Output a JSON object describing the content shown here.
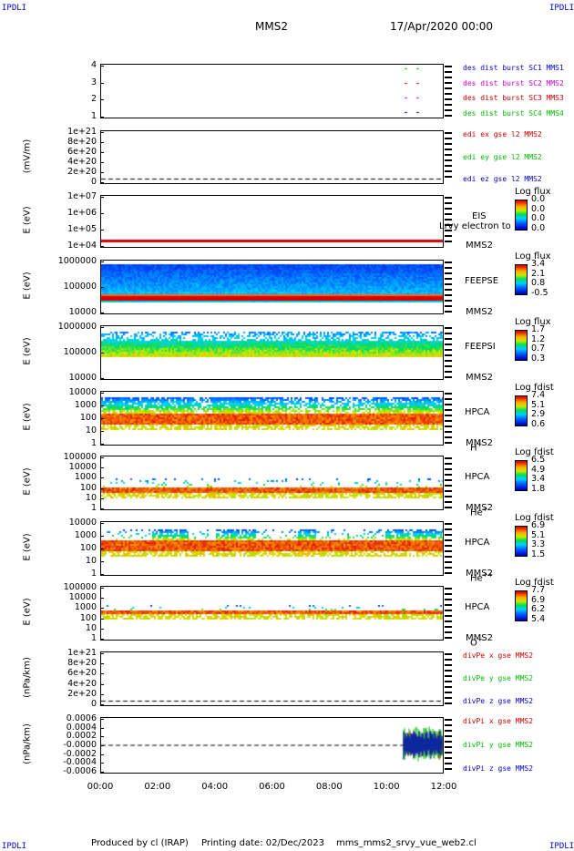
{
  "corners": {
    "tl": "IPDLI",
    "tr": "IPDLI",
    "bl": "IPDLI",
    "br": "IPDLI"
  },
  "header": {
    "spacecraft": "MMS2",
    "date": "17/Apr/2020 00:00"
  },
  "footer": {
    "produced": "Produced by cl (IRAP)",
    "printing": "Printing date: 02/Dec/2023",
    "file": "mms_mms2_srvy_vue_web2.cl"
  },
  "chart_data": {
    "type": "stacked-spectrogram",
    "x_ticks": [
      "00:00",
      "02:00",
      "04:00",
      "06:00",
      "08:00",
      "10:00",
      "12:00"
    ],
    "x_range_hours": [
      0,
      12
    ],
    "panels": [
      {
        "id": "burst",
        "yticks": [
          "4",
          "3",
          "2",
          "1"
        ],
        "ylabel": "",
        "legend": [
          {
            "text": "des dist burst SC1 MMS1",
            "color": "#0000cc"
          },
          {
            "text": "des dist burst SC2 MMS2",
            "color": "#cc00cc"
          },
          {
            "text": "des dist burst SC3 MMS3",
            "color": "#cc0000"
          },
          {
            "text": "des dist burst SC4 MMS4",
            "color": "#00bb00"
          }
        ]
      },
      {
        "id": "edi",
        "yticks": [
          "1e+21",
          "8e+20",
          "6e+20",
          "4e+20",
          "2e+20",
          "0"
        ],
        "ylabel": "(mV/m)",
        "legend": [
          {
            "text": "edi ex gse l2 MMS2",
            "color": "#cc0000"
          },
          {
            "text": "edi ey gse l2 MMS2",
            "color": "#00bb00"
          },
          {
            "text": "edi ez gse l2 MMS2",
            "color": "#0000cc"
          }
        ]
      },
      {
        "id": "eis",
        "yticks": [
          "1e+07",
          "1e+06",
          "1e+05",
          "1e+04"
        ],
        "ylabel": "E (eV)",
        "side": [
          "EIS",
          "MMS2"
        ],
        "overlay": "Lrvy electron to",
        "cb_title": "Log flux",
        "cb_ticks": [
          "0.0",
          "0.0",
          "0.0",
          "0.0"
        ]
      },
      {
        "id": "feepse",
        "yticks": [
          "1000000",
          "100000",
          "10000"
        ],
        "ylabel": "E (eV)",
        "side": [
          "FEEPSE",
          "MMS2"
        ],
        "cb_title": "Log flux",
        "cb_ticks": [
          "3.4",
          "2.1",
          "0.8",
          "-0.5"
        ]
      },
      {
        "id": "feepsi",
        "yticks": [
          "1000000",
          "100000",
          "10000"
        ],
        "ylabel": "E (eV)",
        "side": [
          "FEEPSI",
          "MMS2"
        ],
        "cb_title": "Log flux",
        "cb_ticks": [
          "1.7",
          "1.2",
          "0.7",
          "0.3"
        ]
      },
      {
        "id": "hpca_h",
        "yticks": [
          "10000",
          "1000",
          "100",
          "10",
          "1"
        ],
        "ylabel": "E (eV)",
        "side": [
          "HPCA",
          "MMS2"
        ],
        "species": "H",
        "species_sup": "+",
        "cb_title": "Log fdist",
        "cb_ticks": [
          "7.4",
          "5.1",
          "2.9",
          "0.6"
        ]
      },
      {
        "id": "hpca_he",
        "yticks": [
          "100000",
          "10000",
          "1000",
          "100",
          "10",
          "1"
        ],
        "ylabel": "E (eV)",
        "side": [
          "HPCA",
          "MMS2"
        ],
        "species": "He",
        "species_sup": "+",
        "cb_title": "Log fdist",
        "cb_ticks": [
          "6.5",
          "4.9",
          "3.4",
          "1.8"
        ]
      },
      {
        "id": "hpca_hepp",
        "yticks": [
          "10000",
          "1000",
          "100",
          "10",
          "1"
        ],
        "ylabel": "E (eV)",
        "side": [
          "HPCA",
          "MMS2"
        ],
        "species": "He",
        "species_sup": "++",
        "cb_title": "Log fdist",
        "cb_ticks": [
          "6.9",
          "5.1",
          "3.3",
          "1.5"
        ]
      },
      {
        "id": "hpca_o",
        "yticks": [
          "100000",
          "10000",
          "1000",
          "100",
          "10",
          "1"
        ],
        "ylabel": "E (eV)",
        "side": [
          "HPCA",
          "MMS2"
        ],
        "species": "O",
        "species_sup": "+",
        "cb_title": "Log fdist",
        "cb_ticks": [
          "7.7",
          "6.9",
          "6.2",
          "5.4"
        ]
      },
      {
        "id": "divpe",
        "yticks": [
          "1e+21",
          "8e+20",
          "6e+20",
          "4e+20",
          "2e+20",
          "0"
        ],
        "ylabel": "(nPa/km)",
        "legend": [
          {
            "text": "divPe x gse MMS2",
            "color": "#cc0000"
          },
          {
            "text": "divPe y gse MMS2",
            "color": "#00bb00"
          },
          {
            "text": "divPe z gse MMS2",
            "color": "#0000cc"
          }
        ]
      },
      {
        "id": "divpi",
        "yticks": [
          "0.0006",
          "0.0004",
          "0.0002",
          "-0.0000",
          "-0.0002",
          "-0.0004",
          "-0.0006"
        ],
        "ylabel": "(nPa/km)",
        "legend": [
          {
            "text": "divPi x gse MMS2",
            "color": "#cc0000"
          },
          {
            "text": "divPi y gse MMS2",
            "color": "#00bb00"
          },
          {
            "text": "divPi z gse MMS2",
            "color": "#0000cc"
          }
        ]
      }
    ]
  }
}
